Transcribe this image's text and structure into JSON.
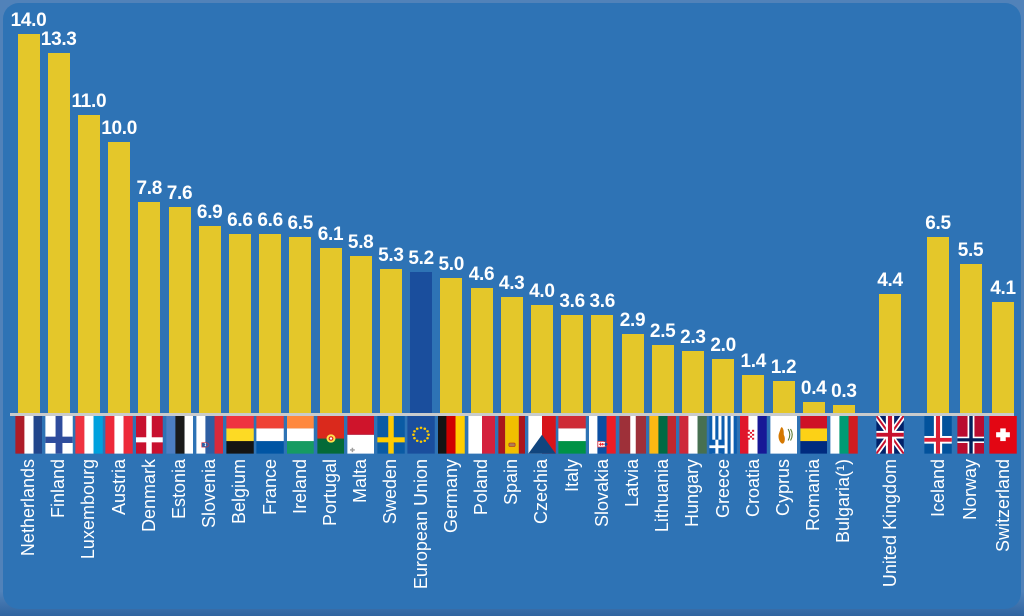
{
  "chart_data": {
    "type": "bar",
    "title": "",
    "xlabel": "",
    "ylabel": "",
    "ylim": [
      0,
      15
    ],
    "grid": false,
    "legend": "none",
    "value_labels_shown": true,
    "flag_icons_shown": true,
    "colors": {
      "panel_background": "#2E73B5",
      "page_frame": "#5182B9",
      "bar": "#E4C72A",
      "eu_aggregate_bar": "#1A4E9D",
      "baseline": "#C9CBCC",
      "value_text": "#FFFFFF",
      "country_text": "#FFFFFF"
    },
    "highlighted_item": "European Union",
    "items": [
      {
        "name": "Netherlands",
        "value": 14.0,
        "value_label": "14.0",
        "flag": "nl",
        "group": "eu"
      },
      {
        "name": "Finland",
        "value": 13.3,
        "value_label": "13.3",
        "flag": "fi",
        "group": "eu"
      },
      {
        "name": "Luxembourg",
        "value": 11.0,
        "value_label": "11.0",
        "flag": "lu",
        "group": "eu"
      },
      {
        "name": "Austria",
        "value": 10.0,
        "value_label": "10.0",
        "flag": "at",
        "group": "eu"
      },
      {
        "name": "Denmark",
        "value": 7.8,
        "value_label": "7.8",
        "flag": "dk",
        "group": "eu"
      },
      {
        "name": "Estonia",
        "value": 7.6,
        "value_label": "7.6",
        "flag": "ee",
        "group": "eu"
      },
      {
        "name": "Slovenia",
        "value": 6.9,
        "value_label": "6.9",
        "flag": "si",
        "group": "eu"
      },
      {
        "name": "Belgium",
        "value": 6.6,
        "value_label": "6.6",
        "flag": "be",
        "group": "eu"
      },
      {
        "name": "France",
        "value": 6.6,
        "value_label": "6.6",
        "flag": "fr",
        "group": "eu"
      },
      {
        "name": "Ireland",
        "value": 6.5,
        "value_label": "6.5",
        "flag": "ie",
        "group": "eu"
      },
      {
        "name": "Portugal",
        "value": 6.1,
        "value_label": "6.1",
        "flag": "pt",
        "group": "eu"
      },
      {
        "name": "Malta",
        "value": 5.8,
        "value_label": "5.8",
        "flag": "mt",
        "group": "eu"
      },
      {
        "name": "Sweden",
        "value": 5.3,
        "value_label": "5.3",
        "flag": "se",
        "group": "eu"
      },
      {
        "name": "European Union",
        "value": 5.2,
        "value_label": "5.2",
        "flag": "eu",
        "group": "eu",
        "aggregate": true
      },
      {
        "name": "Germany",
        "value": 5.0,
        "value_label": "5.0",
        "flag": "de",
        "group": "eu"
      },
      {
        "name": "Poland",
        "value": 4.6,
        "value_label": "4.6",
        "flag": "pl",
        "group": "eu"
      },
      {
        "name": "Spain",
        "value": 4.3,
        "value_label": "4.3",
        "flag": "es",
        "group": "eu"
      },
      {
        "name": "Czechia",
        "value": 4.0,
        "value_label": "4.0",
        "flag": "cz",
        "group": "eu"
      },
      {
        "name": "Italy",
        "value": 3.6,
        "value_label": "3.6",
        "flag": "it",
        "group": "eu"
      },
      {
        "name": "Slovakia",
        "value": 3.6,
        "value_label": "3.6",
        "flag": "sk",
        "group": "eu"
      },
      {
        "name": "Latvia",
        "value": 2.9,
        "value_label": "2.9",
        "flag": "lv",
        "group": "eu"
      },
      {
        "name": "Lithuania",
        "value": 2.5,
        "value_label": "2.5",
        "flag": "lt",
        "group": "eu"
      },
      {
        "name": "Hungary",
        "value": 2.3,
        "value_label": "2.3",
        "flag": "hu",
        "group": "eu"
      },
      {
        "name": "Greece",
        "value": 2.0,
        "value_label": "2.0",
        "flag": "gr",
        "group": "eu"
      },
      {
        "name": "Croatia",
        "value": 1.4,
        "value_label": "1.4",
        "flag": "hr",
        "group": "eu"
      },
      {
        "name": "Cyprus",
        "value": 1.2,
        "value_label": "1.2",
        "flag": "cy",
        "group": "eu"
      },
      {
        "name": "Romania",
        "value": 0.4,
        "value_label": "0.4",
        "flag": "ro",
        "group": "eu"
      },
      {
        "name": "Bulgaria(¹)",
        "value": 0.3,
        "value_label": "0.3",
        "flag": "bg",
        "group": "eu"
      },
      {
        "name": "United Kingdom",
        "value": 4.4,
        "value_label": "4.4",
        "flag": "gb",
        "group": "uk"
      },
      {
        "name": "Iceland",
        "value": 6.5,
        "value_label": "6.5",
        "flag": "is",
        "group": "efta"
      },
      {
        "name": "Norway",
        "value": 5.5,
        "value_label": "5.5",
        "flag": "no",
        "group": "efta"
      },
      {
        "name": "Switzerland",
        "value": 4.1,
        "value_label": "4.1",
        "flag": "ch",
        "group": "efta"
      }
    ]
  }
}
